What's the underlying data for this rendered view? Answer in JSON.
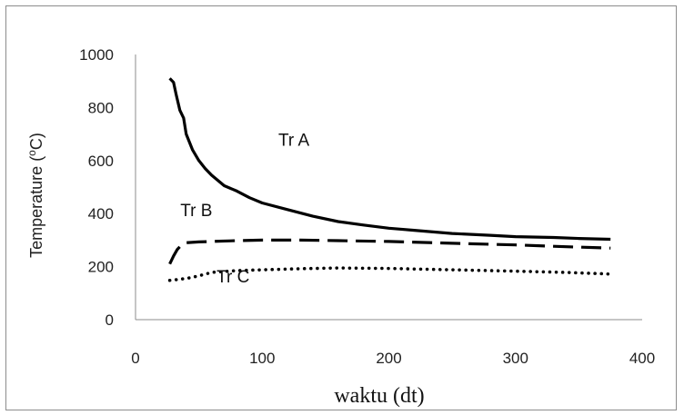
{
  "chart_data": {
    "type": "line",
    "xlabel": "waktu (dt)",
    "ylabel": "Temperature (oC)",
    "ylabel_parts": {
      "before": "Temperature (",
      "sup": "o",
      "after": "C)"
    },
    "xlim": [
      0,
      400
    ],
    "ylim": [
      0,
      1000
    ],
    "xticks": [
      "0",
      "100",
      "200",
      "300",
      "400"
    ],
    "yticks": [
      "0",
      "200",
      "400",
      "600",
      "800",
      "1000"
    ],
    "grid": false,
    "legend": "none",
    "series": [
      {
        "name": "Tr A",
        "style": "solid",
        "color": "#000000",
        "x": [
          27,
          30,
          32,
          35,
          38,
          40,
          45,
          50,
          55,
          60,
          70,
          80,
          90,
          100,
          120,
          140,
          160,
          180,
          200,
          220,
          250,
          280,
          300,
          330,
          350,
          375
        ],
        "y": [
          910,
          895,
          850,
          790,
          760,
          700,
          640,
          600,
          570,
          545,
          505,
          485,
          460,
          440,
          415,
          390,
          370,
          357,
          345,
          337,
          325,
          318,
          313,
          310,
          306,
          303
        ]
      },
      {
        "name": "Tr B",
        "style": "dashed",
        "color": "#000000",
        "x": [
          27,
          30,
          33,
          36,
          40,
          50,
          60,
          80,
          100,
          130,
          160,
          200,
          250,
          300,
          340,
          375
        ],
        "y": [
          210,
          240,
          265,
          280,
          290,
          293,
          295,
          298,
          300,
          300,
          298,
          295,
          288,
          282,
          275,
          270
        ]
      },
      {
        "name": "Tr C",
        "style": "dotted",
        "color": "#000000",
        "x": [
          27,
          40,
          50,
          60,
          80,
          100,
          130,
          160,
          200,
          250,
          300,
          340,
          375
        ],
        "y": [
          148,
          155,
          165,
          178,
          185,
          188,
          192,
          195,
          193,
          188,
          183,
          178,
          172
        ]
      }
    ],
    "annotations": [
      {
        "text": "Tr A",
        "x": 125,
        "y": 655
      },
      {
        "text": "Tr B",
        "x": 48,
        "y": 390
      },
      {
        "text": "Tr C",
        "x": 77,
        "y": 140
      }
    ]
  }
}
